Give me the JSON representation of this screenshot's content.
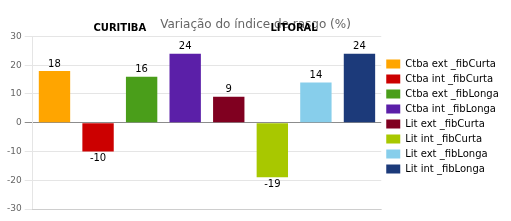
{
  "chart_data": {
    "type": "bar",
    "title": "Variação do índice de rasgo (%)",
    "categories": [
      "Ctba ext _fibCurta",
      "Ctba int _fibCurta",
      "Ctba ext _fibLonga",
      "Ctba int _fibLonga",
      "Lit ext _fibCurta",
      "Lit int _fibCurta",
      "Lit ext _fibLonga",
      "Lit int _fibLonga"
    ],
    "values": [
      18,
      -10,
      16,
      24,
      9,
      -19,
      14,
      24
    ],
    "colors": [
      "#FFA500",
      "#CC0000",
      "#4A9E1A",
      "#5B1FA8",
      "#800020",
      "#A8C800",
      "#87CEEB",
      "#1C3A7A"
    ],
    "annotations": [
      "CURITIBA",
      "LITORAL"
    ],
    "ylim": [
      -30,
      30
    ],
    "yticks": [
      -30,
      -20,
      -10,
      0,
      10,
      20,
      30
    ],
    "grid": true,
    "legend": "right",
    "data_labels": true,
    "tick_labels": "y"
  }
}
